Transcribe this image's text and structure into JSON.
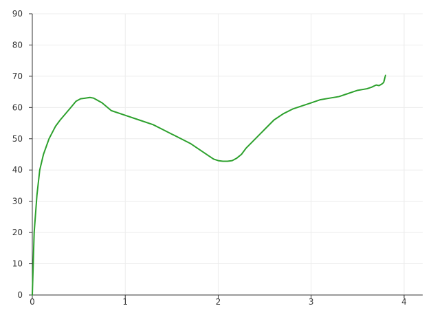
{
  "chart_data": {
    "type": "line",
    "title": "",
    "xlabel": "",
    "ylabel": "",
    "xlim": [
      0,
      4.2
    ],
    "ylim": [
      0,
      90
    ],
    "xticks": [
      0,
      1,
      2,
      3,
      4
    ],
    "yticks": [
      0,
      10,
      20,
      30,
      40,
      50,
      60,
      70,
      80,
      90
    ],
    "grid": true,
    "legend": "none",
    "line_color": "#2ca02c",
    "series": [
      {
        "x": [
          0.0,
          0.02,
          0.05,
          0.08,
          0.12,
          0.18,
          0.25,
          0.3,
          0.4,
          0.47,
          0.52,
          0.57,
          0.62,
          0.66,
          0.75,
          0.85,
          1.0,
          1.15,
          1.3,
          1.4,
          1.5,
          1.6,
          1.7,
          1.8,
          1.9,
          1.95,
          2.0,
          2.05,
          2.1,
          2.15,
          2.2,
          2.25,
          2.3,
          2.4,
          2.5,
          2.6,
          2.7,
          2.8,
          2.9,
          3.0,
          3.1,
          3.2,
          3.3,
          3.4,
          3.5,
          3.6,
          3.65,
          3.7,
          3.73,
          3.76,
          3.78,
          3.8
        ],
        "y": [
          0.0,
          20.0,
          32.0,
          40.0,
          45.0,
          50.0,
          54.0,
          56.0,
          59.5,
          62.0,
          62.8,
          63.0,
          63.2,
          63.0,
          61.5,
          59.0,
          57.5,
          56.0,
          54.5,
          53.0,
          51.5,
          50.0,
          48.5,
          46.5,
          44.5,
          43.5,
          43.0,
          42.8,
          42.8,
          43.0,
          43.8,
          45.0,
          47.0,
          50.0,
          53.0,
          56.0,
          58.0,
          59.5,
          60.5,
          61.5,
          62.5,
          63.0,
          63.5,
          64.5,
          65.5,
          66.0,
          66.5,
          67.2,
          67.0,
          67.5,
          68.0,
          70.3
        ]
      }
    ]
  }
}
